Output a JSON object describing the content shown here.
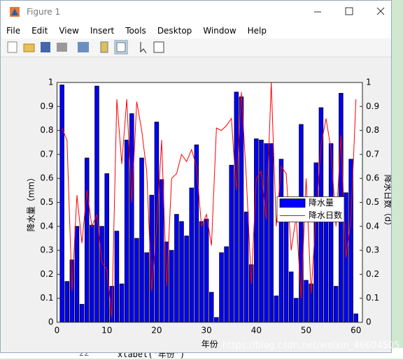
{
  "window": {
    "title": "Figure 1",
    "menu": [
      "File",
      "Edit",
      "View",
      "Insert",
      "Tools",
      "Desktop",
      "Window",
      "Help"
    ]
  },
  "background": {
    "code_line_number": "22",
    "code_text": "xlabel('年份')",
    "watermark": "https://blog.csdn.net/weixin_46604505"
  },
  "chart_data": {
    "type": "bar",
    "x_label": "年份",
    "y_label": "降水量（mm）",
    "y2_label": "降水日数（d）",
    "x": [
      1,
      2,
      3,
      4,
      5,
      6,
      7,
      8,
      9,
      10,
      11,
      12,
      13,
      14,
      15,
      16,
      17,
      18,
      19,
      20,
      21,
      22,
      23,
      24,
      25,
      26,
      27,
      28,
      29,
      30,
      31,
      32,
      33,
      34,
      35,
      36,
      37,
      38,
      39,
      40,
      41,
      42,
      43,
      44,
      45,
      46,
      47,
      48,
      49,
      50,
      51,
      52,
      53,
      54,
      55,
      56,
      57,
      58,
      59,
      60
    ],
    "series": [
      {
        "name": "降水量",
        "type": "bar",
        "axis": "y",
        "color": "#0000ff",
        "values": [
          0.99,
          0.17,
          0.26,
          0.4,
          0.075,
          0.685,
          0.405,
          0.985,
          0.4,
          0.62,
          0.15,
          0.38,
          0.16,
          0.76,
          0.87,
          0.35,
          0.685,
          0.29,
          0.53,
          0.835,
          0.595,
          0.335,
          0.3,
          0.45,
          0.42,
          0.36,
          0.56,
          0.74,
          0.42,
          0.43,
          0.125,
          0.02,
          0.29,
          0.315,
          0.655,
          0.96,
          0.94,
          0.46,
          0.24,
          0.765,
          0.76,
          0.745,
          0.745,
          0.11,
          0.68,
          0.465,
          0.21,
          0.1,
          0.825,
          0.175,
          0.16,
          0.665,
          0.895,
          0.52,
          0.745,
          0.15,
          0.955,
          0.54,
          0.68,
          0.035
        ]
      },
      {
        "name": "降水日数",
        "type": "line",
        "axis": "y2",
        "color": "#ff0000",
        "values": [
          0.81,
          0.76,
          0.13,
          0.53,
          0.33,
          0.55,
          0.4,
          0.45,
          0.25,
          0.22,
          0.02,
          0.93,
          0.66,
          0.93,
          0.5,
          0.92,
          0.8,
          0.63,
          0.13,
          0.4,
          0.76,
          0.15,
          0.6,
          0.62,
          0.7,
          0.67,
          0.72,
          0.65,
          0.4,
          0.45,
          0.32,
          0.81,
          0.8,
          0.82,
          0.85,
          0.55,
          0.96,
          0.6,
          0.16,
          0.6,
          0.63,
          0.43,
          1.0,
          0.4,
          0.65,
          0.62,
          0.3,
          0.44,
          0.1,
          0.6,
          0.12,
          0.45,
          0.74,
          0.85,
          0.72,
          0.4,
          0.78,
          0.27,
          0.43,
          0.93
        ]
      }
    ],
    "xlim": [
      0,
      61.3
    ],
    "xticks": [
      0,
      10,
      20,
      30,
      40,
      50,
      60
    ],
    "ylim": [
      0,
      1
    ],
    "yticks": [
      0,
      0.1,
      0.2,
      0.3,
      0.4,
      0.5,
      0.6,
      0.7,
      0.8,
      0.9,
      1
    ],
    "y2lim": [
      0,
      1
    ],
    "y2ticks": [
      0,
      0.1,
      0.2,
      0.3,
      0.4,
      0.5,
      0.6,
      0.7,
      0.8,
      0.9,
      1
    ],
    "legend": "east"
  }
}
